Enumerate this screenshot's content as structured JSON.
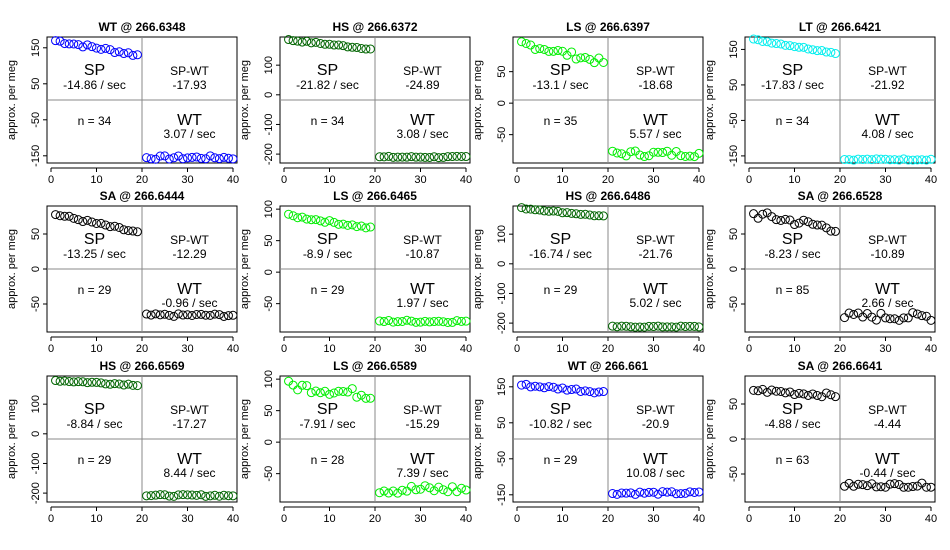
{
  "figure": {
    "ylabel": "approx. per meg",
    "sp_label": "SP",
    "spwt_label": "SP-WT",
    "wt_label": "WT",
    "rate_unit": " / sec",
    "n_prefix": "n = "
  },
  "chart_data": [
    {
      "type": "scatter",
      "title": "WT @ 266.6348",
      "color": "#0000ff",
      "ylim": [
        -170,
        180
      ],
      "yticks": [
        150,
        50,
        -50,
        -150
      ],
      "xticks": [
        0,
        10,
        20,
        30,
        40
      ],
      "n": 34,
      "sp_rate": "-14.86",
      "wt_rate": "3.07",
      "spwt": "-17.93",
      "sp_start": 170,
      "sp_end": 130,
      "wt_level": -155,
      "noise": 10
    },
    {
      "type": "scatter",
      "title": "HS @ 266.6372",
      "color": "#006400",
      "ylim": [
        -230,
        195
      ],
      "yticks": [
        100,
        0,
        -100,
        -200
      ],
      "xticks": [
        0,
        10,
        20,
        30,
        40
      ],
      "n": 34,
      "sp_rate": "-21.82",
      "wt_rate": "3.08",
      "spwt": "-24.89",
      "sp_start": 185,
      "sp_end": 155,
      "wt_level": -210,
      "noise": 5
    },
    {
      "type": "scatter",
      "title": "LS @ 266.6397",
      "color": "#00ee00",
      "ylim": [
        -95,
        105
      ],
      "yticks": [
        50,
        0,
        -50
      ],
      "xticks": [
        0,
        10,
        20,
        30,
        40
      ],
      "n": 35,
      "sp_rate": "-13.1",
      "wt_rate": "5.57",
      "spwt": "-18.68",
      "sp_start": 95,
      "sp_end": 65,
      "wt_level": -80,
      "noise": 10
    },
    {
      "type": "scatter",
      "title": "LT @ 266.6421",
      "color": "#00eeee",
      "ylim": [
        -170,
        185
      ],
      "yticks": [
        150,
        50,
        -50,
        -150
      ],
      "xticks": [
        0,
        10,
        20,
        30,
        40
      ],
      "n": 34,
      "sp_rate": "-17.83",
      "wt_rate": "4.08",
      "spwt": "-21.92",
      "sp_start": 178,
      "sp_end": 140,
      "wt_level": -160,
      "noise": 4
    },
    {
      "type": "scatter",
      "title": "SA @ 266.6444",
      "color": "#000000",
      "ylim": [
        -90,
        90
      ],
      "yticks": [
        50,
        0,
        -50
      ],
      "xticks": [
        0,
        10,
        20,
        30,
        40
      ],
      "n": 29,
      "sp_rate": "-13.25",
      "wt_rate": "-0.96",
      "spwt": "-12.29",
      "sp_start": 78,
      "sp_end": 52,
      "wt_level": -66,
      "noise": 4
    },
    {
      "type": "scatter",
      "title": "LS @ 266.6465",
      "color": "#00ee00",
      "ylim": [
        -95,
        105
      ],
      "yticks": [
        100,
        50,
        0,
        -50
      ],
      "xticks": [
        0,
        10,
        20,
        30,
        40
      ],
      "n": 29,
      "sp_rate": "-8.9",
      "wt_rate": "1.97",
      "spwt": "-10.87",
      "sp_start": 90,
      "sp_end": 70,
      "wt_level": -78,
      "noise": 4
    },
    {
      "type": "scatter",
      "title": "HS @ 266.6486",
      "color": "#006400",
      "ylim": [
        -230,
        195
      ],
      "yticks": [
        100,
        0,
        -100,
        -200
      ],
      "xticks": [
        0,
        10,
        20,
        30,
        40
      ],
      "n": 29,
      "sp_rate": "-16.74",
      "wt_rate": "5.02",
      "spwt": "-21.76",
      "sp_start": 188,
      "sp_end": 160,
      "wt_level": -212,
      "noise": 4
    },
    {
      "type": "scatter",
      "title": "SA @ 266.6528",
      "color": "#000000",
      "ylim": [
        -90,
        90
      ],
      "yticks": [
        50,
        0,
        -50
      ],
      "xticks": [
        0,
        10,
        20,
        30,
        40
      ],
      "n": 85,
      "sp_rate": "-8.23",
      "wt_rate": "2.66",
      "spwt": "-10.89",
      "sp_start": 78,
      "sp_end": 58,
      "wt_level": -68,
      "noise": 12
    },
    {
      "type": "scatter",
      "title": "HS @ 266.6569",
      "color": "#006400",
      "ylim": [
        -230,
        195
      ],
      "yticks": [
        100,
        0,
        -100,
        -200
      ],
      "xticks": [
        0,
        10,
        20,
        30,
        40
      ],
      "n": 29,
      "sp_rate": "-8.84",
      "wt_rate": "8.44",
      "spwt": "-17.27",
      "sp_start": 180,
      "sp_end": 165,
      "wt_level": -208,
      "noise": 6
    },
    {
      "type": "scatter",
      "title": "LS @ 266.6589",
      "color": "#00ee00",
      "ylim": [
        -95,
        105
      ],
      "yticks": [
        100,
        50,
        0,
        -50
      ],
      "xticks": [
        0,
        10,
        20,
        30,
        40
      ],
      "n": 28,
      "sp_rate": "-7.91",
      "wt_rate": "7.39",
      "spwt": "-15.29",
      "sp_start": 90,
      "sp_end": 75,
      "wt_level": -75,
      "noise": 15
    },
    {
      "type": "scatter",
      "title": "WT @ 266.661",
      "color": "#0000ff",
      "ylim": [
        -170,
        180
      ],
      "yticks": [
        150,
        50,
        -50,
        -150
      ],
      "xticks": [
        0,
        10,
        20,
        30,
        40
      ],
      "n": 29,
      "sp_rate": "-10.82",
      "wt_rate": "10.08",
      "spwt": "-20.9",
      "sp_start": 155,
      "sp_end": 135,
      "wt_level": -145,
      "noise": 8
    },
    {
      "type": "scatter",
      "title": "SA @ 266.6641",
      "color": "#000000",
      "ylim": [
        -90,
        90
      ],
      "yticks": [
        50,
        0,
        -50
      ],
      "xticks": [
        0,
        10,
        20,
        30,
        40
      ],
      "n": 63,
      "sp_rate": "-4.88",
      "wt_rate": "-0.44",
      "spwt": "-4.44",
      "sp_start": 70,
      "sp_end": 62,
      "wt_level": -66,
      "noise": 6
    }
  ]
}
